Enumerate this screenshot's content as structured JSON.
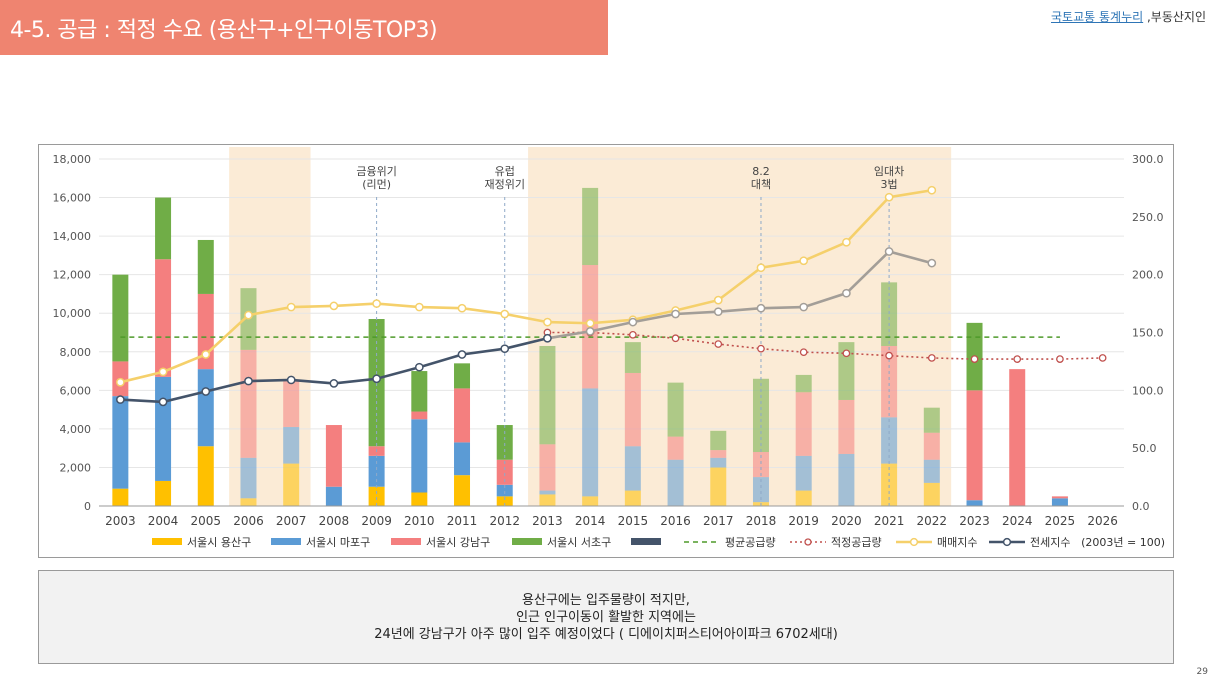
{
  "header": {
    "title": "4-5. 공급 : 적정 수요 (용산구+인구이동TOP3)",
    "source_link": "국토교통 통계누리",
    "source_suffix": " ,부동산지인"
  },
  "colors": {
    "title_bar": "#EF8470",
    "yongsan": "#FFC000",
    "mapo": "#5B9BD5",
    "gangnam": "#F47F7F",
    "seocho": "#70AD47",
    "highlight_band": "#FBEBD6",
    "avg_supply": "#4E9A2A",
    "proper_supply": "#C0504D",
    "sale_index": "#F5D06B",
    "jeonse_index": "#44546A"
  },
  "chart_data": {
    "type": "bar",
    "stacked": true,
    "categories": [
      "2003",
      "2004",
      "2005",
      "2006",
      "2007",
      "2008",
      "2009",
      "2010",
      "2011",
      "2012",
      "2013",
      "2014",
      "2015",
      "2016",
      "2017",
      "2018",
      "2019",
      "2020",
      "2021",
      "2022",
      "2023",
      "2024",
      "2025",
      "2026"
    ],
    "ylim": [
      0,
      18000
    ],
    "y_ticks": [
      "0",
      "2,000",
      "4,000",
      "6,000",
      "8,000",
      "10,000",
      "12,000",
      "14,000",
      "16,000",
      "18,000"
    ],
    "y2lim": [
      0,
      300
    ],
    "y2_ticks": [
      "0.0",
      "50.0",
      "100.0",
      "150.0",
      "200.0",
      "250.0",
      "300.0"
    ],
    "highlight_ranges": [
      [
        "2006",
        "2007"
      ],
      [
        "2013",
        "2022"
      ]
    ],
    "series": [
      {
        "name": "서울시 용산구",
        "key": "yongsan",
        "values": [
          900,
          1300,
          3100,
          400,
          2200,
          0,
          1000,
          700,
          1600,
          500,
          600,
          500,
          800,
          0,
          2000,
          200,
          800,
          0,
          2200,
          1200,
          0,
          0,
          0,
          0
        ]
      },
      {
        "name": "서울시 마포구",
        "key": "mapo",
        "values": [
          4800,
          5400,
          4000,
          2100,
          1900,
          1000,
          1600,
          3800,
          1700,
          600,
          200,
          5600,
          2300,
          2400,
          500,
          1300,
          1800,
          2700,
          2400,
          1200,
          300,
          0,
          400,
          0
        ]
      },
      {
        "name": "서울시 강남구",
        "key": "gangnam",
        "values": [
          1800,
          6100,
          3900,
          5600,
          2400,
          3200,
          500,
          400,
          2800,
          1300,
          2400,
          6400,
          3800,
          1200,
          400,
          1300,
          3300,
          2800,
          3700,
          1400,
          5700,
          7100,
          100,
          0
        ]
      },
      {
        "name": "서울시 서초구",
        "key": "seocho",
        "values": [
          4500,
          3200,
          2800,
          3200,
          0,
          0,
          6600,
          2100,
          1300,
          1800,
          5100,
          4000,
          1600,
          2800,
          1000,
          3800,
          900,
          3000,
          3300,
          1300,
          3500,
          0,
          0,
          0
        ]
      }
    ],
    "lines": [
      {
        "name": "평균공급량",
        "key": "avg",
        "axis": "left",
        "style": "dashed",
        "values": [
          8760,
          8760,
          8760,
          8760,
          8760,
          8760,
          8760,
          8760,
          8760,
          8760,
          8760,
          8760,
          8760,
          8760,
          8760,
          8760,
          8760,
          8760,
          8760,
          8760,
          8760,
          8760,
          8760,
          null
        ]
      },
      {
        "name": "적정공급량",
        "key": "proper",
        "axis": "right",
        "style": "dotted",
        "values": [
          null,
          null,
          null,
          null,
          null,
          null,
          null,
          null,
          null,
          null,
          150,
          150,
          148,
          145,
          140,
          136,
          133,
          132,
          130,
          128,
          127,
          127,
          127,
          128
        ]
      },
      {
        "name": "매매지수",
        "key": "sale",
        "axis": "right",
        "style": "solid",
        "values": [
          107,
          116,
          131,
          165,
          172,
          173,
          175,
          172,
          171,
          166,
          159,
          158,
          161,
          169,
          178,
          206,
          212,
          228,
          267,
          273,
          null,
          null,
          null,
          null
        ]
      },
      {
        "name": "전세지수",
        "key": "jeonse",
        "axis": "right",
        "style": "solid",
        "values": [
          92,
          90,
          99,
          108,
          109,
          106,
          110,
          120,
          131,
          136,
          145,
          151,
          159,
          166,
          168,
          171,
          172,
          184,
          220,
          210,
          null,
          null,
          null,
          null
        ]
      }
    ],
    "annotations": [
      {
        "year": "2009",
        "text": [
          "금융위기",
          "(리먼)"
        ]
      },
      {
        "year": "2012",
        "text": [
          "유럽",
          "재정위기"
        ]
      },
      {
        "year": "2018",
        "text": [
          "8.2",
          "대책"
        ]
      },
      {
        "year": "2021",
        "text": [
          "임대차",
          "3법"
        ]
      }
    ],
    "legend": [
      {
        "label": "서울시 용산구",
        "kind": "bar",
        "key": "yongsan"
      },
      {
        "label": "서울시 마포구",
        "kind": "bar",
        "key": "mapo"
      },
      {
        "label": "서울시 강남구",
        "kind": "bar",
        "key": "gangnam"
      },
      {
        "label": "서울시 서초구",
        "kind": "bar",
        "key": "seocho"
      },
      {
        "label": "",
        "kind": "bar",
        "key": "jeonse"
      },
      {
        "label": "평균공급량",
        "kind": "dashed",
        "key": "avg"
      },
      {
        "label": "적정공급량",
        "kind": "dotted",
        "key": "proper"
      },
      {
        "label": "매매지수",
        "kind": "line",
        "key": "sale"
      },
      {
        "label": "전세지수",
        "kind": "line",
        "key": "jeonse"
      }
    ],
    "legend_note": "(2003년 = 100)"
  },
  "note": {
    "lines": [
      "용산구에는 입주물량이 적지만,",
      "인근 인구이동이 활발한 지역에는",
      "24년에 강남구가 아주 많이 입주 예정이었다 ( 디에이치퍼스티어아이파크 6702세대)"
    ]
  },
  "page_number": "29"
}
